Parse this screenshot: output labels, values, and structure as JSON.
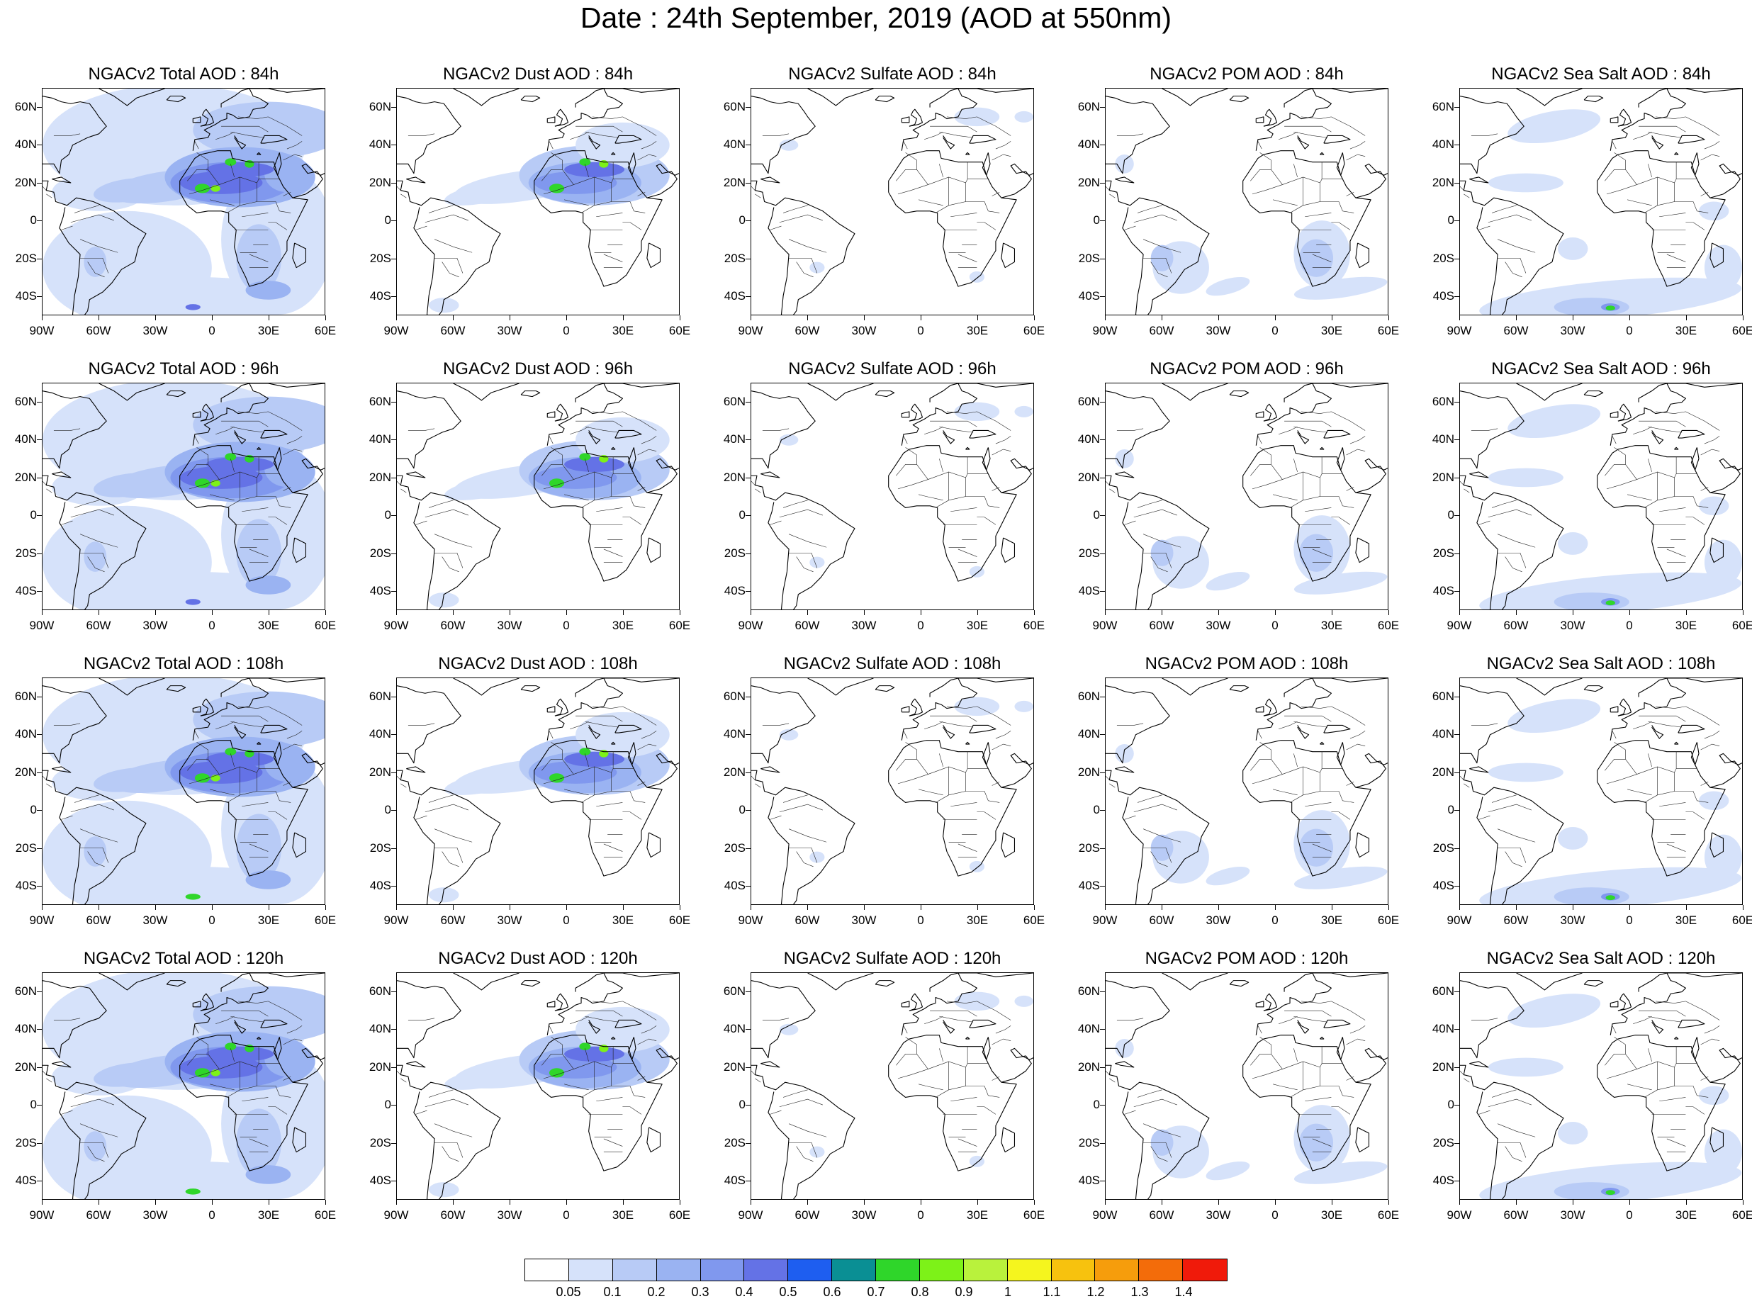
{
  "title": "Date : 24th September, 2019 (AOD at 550nm)",
  "panels": [
    {
      "title": "NGACv2 Total AOD : 84h",
      "species": "total",
      "hour": 84
    },
    {
      "title": "NGACv2 Dust AOD : 84h",
      "species": "dust",
      "hour": 84
    },
    {
      "title": "NGACv2 Sulfate AOD : 84h",
      "species": "sulfate",
      "hour": 84
    },
    {
      "title": "NGACv2 POM AOD : 84h",
      "species": "pom",
      "hour": 84
    },
    {
      "title": "NGACv2 Sea Salt AOD : 84h",
      "species": "seasalt",
      "hour": 84
    },
    {
      "title": "NGACv2 Total AOD : 96h",
      "species": "total",
      "hour": 96
    },
    {
      "title": "NGACv2 Dust AOD : 96h",
      "species": "dust",
      "hour": 96
    },
    {
      "title": "NGACv2 Sulfate AOD : 96h",
      "species": "sulfate",
      "hour": 96
    },
    {
      "title": "NGACv2 POM AOD : 96h",
      "species": "pom",
      "hour": 96
    },
    {
      "title": "NGACv2 Sea Salt AOD : 96h",
      "species": "seasalt",
      "hour": 96
    },
    {
      "title": "NGACv2 Total AOD : 108h",
      "species": "total",
      "hour": 108
    },
    {
      "title": "NGACv2 Dust AOD : 108h",
      "species": "dust",
      "hour": 108
    },
    {
      "title": "NGACv2 Sulfate AOD : 108h",
      "species": "sulfate",
      "hour": 108
    },
    {
      "title": "NGACv2 POM AOD : 108h",
      "species": "pom",
      "hour": 108
    },
    {
      "title": "NGACv2 Sea Salt AOD : 108h",
      "species": "seasalt",
      "hour": 108
    },
    {
      "title": "NGACv2 Total AOD : 120h",
      "species": "total",
      "hour": 120
    },
    {
      "title": "NGACv2 Dust AOD : 120h",
      "species": "dust",
      "hour": 120
    },
    {
      "title": "NGACv2 Sulfate AOD : 120h",
      "species": "sulfate",
      "hour": 120
    },
    {
      "title": "NGACv2 POM AOD : 120h",
      "species": "pom",
      "hour": 120
    },
    {
      "title": "NGACv2 Sea Salt  AOD : 120h",
      "species": "seasalt",
      "hour": 120
    }
  ],
  "lat_labels": [
    "60N",
    "40N",
    "20N",
    "0",
    "20S",
    "40S"
  ],
  "lon_labels": [
    "90W",
    "60W",
    "30W",
    "0",
    "30E",
    "60E"
  ],
  "map_extent": {
    "lon": [
      -90,
      60
    ],
    "lat": [
      -50,
      70
    ]
  },
  "colorbar": {
    "labels": [
      "0.05",
      "0.1",
      "0.2",
      "0.3",
      "0.4",
      "0.5",
      "0.6",
      "0.7",
      "0.8",
      "0.9",
      "1",
      "1.1",
      "1.2",
      "1.3",
      "1.4"
    ],
    "colors": [
      "#ffffff",
      "#d6e2fa",
      "#b8cbf6",
      "#9ab3f2",
      "#8098ee",
      "#6472e6",
      "#1e5ef0",
      "#0a8f94",
      "#2fd62a",
      "#7df218",
      "#b9f23c",
      "#f5f51e",
      "#f7c20e",
      "#f69d0c",
      "#f36c0a",
      "#f01a0a"
    ]
  }
}
